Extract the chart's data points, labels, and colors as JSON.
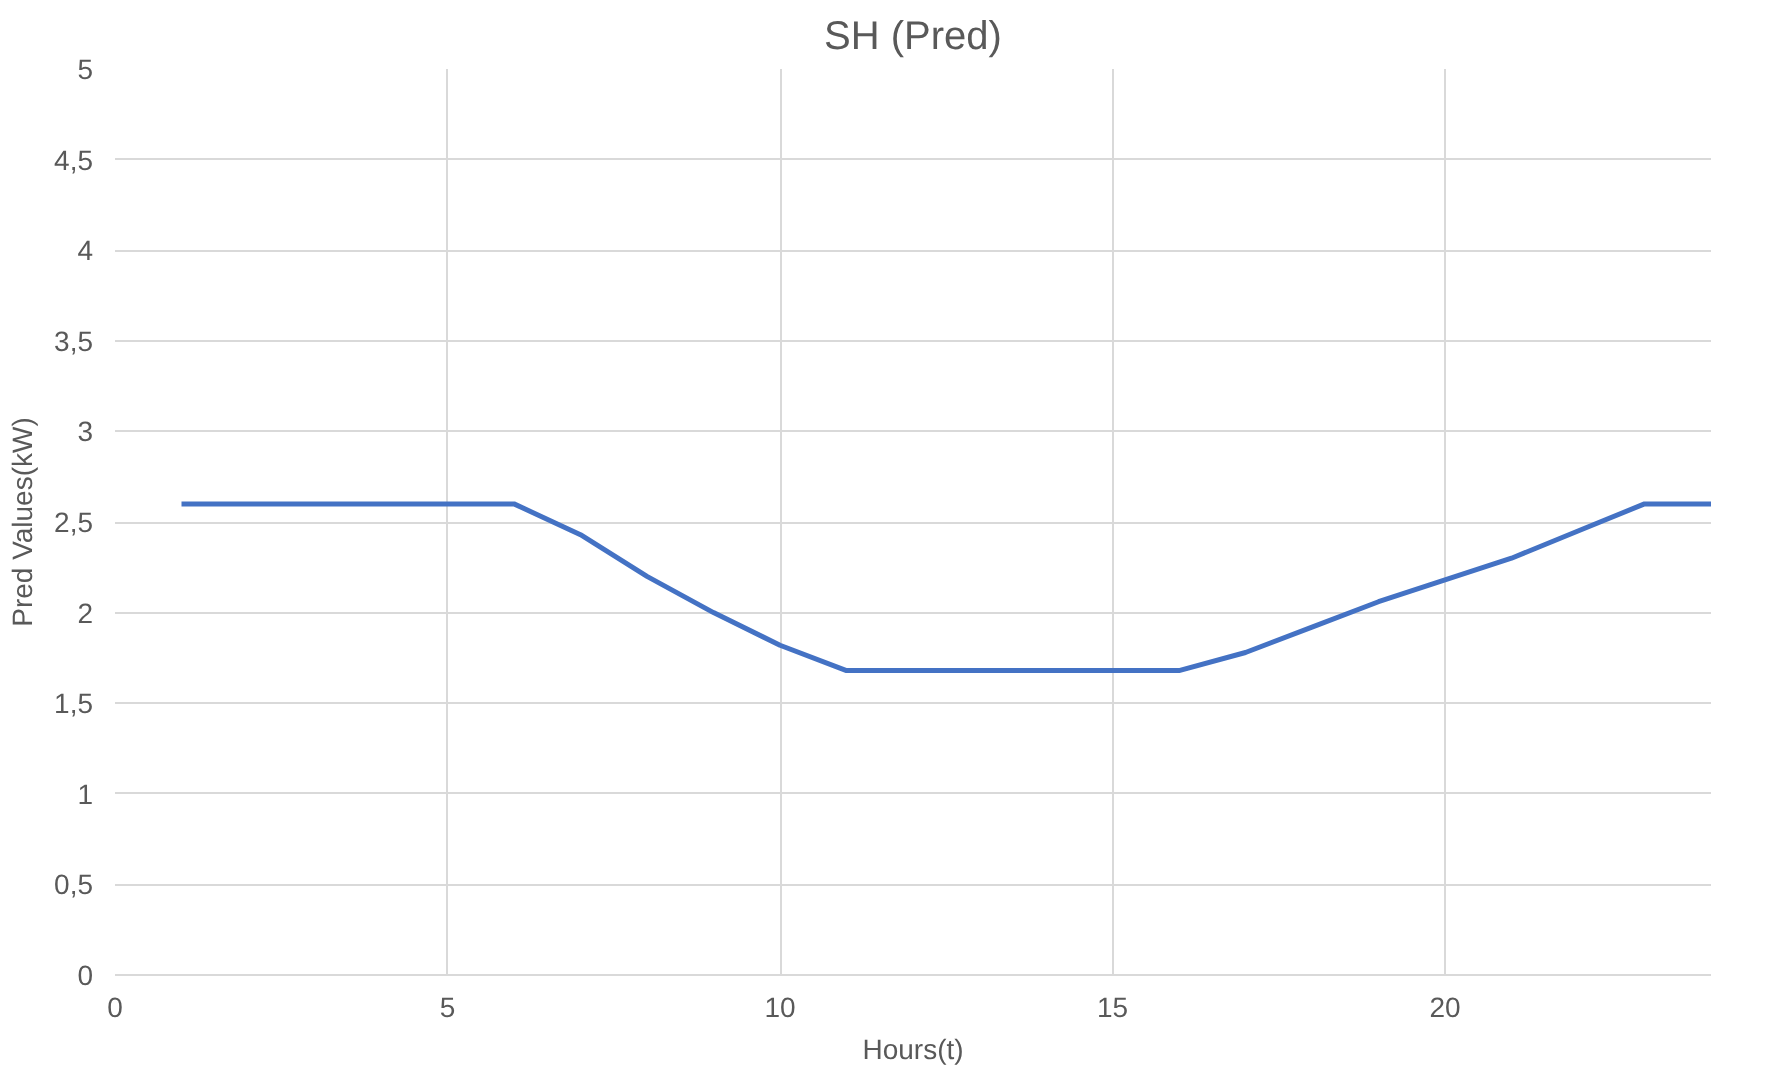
{
  "chart_data": {
    "type": "line",
    "title": "SH (Pred)",
    "xlabel": "Hours(t)",
    "ylabel": "Pred Values(kW)",
    "x": [
      1,
      2,
      3,
      4,
      5,
      6,
      7,
      8,
      9,
      10,
      11,
      12,
      13,
      14,
      15,
      16,
      17,
      18,
      19,
      20,
      21,
      22,
      23,
      24
    ],
    "series": [
      {
        "color": "#4472c4",
        "values": [
          2.6,
          2.6,
          2.6,
          2.6,
          2.6,
          2.6,
          2.43,
          2.2,
          2.0,
          1.82,
          1.68,
          1.68,
          1.68,
          1.68,
          1.68,
          1.68,
          1.78,
          1.92,
          2.06,
          2.18,
          2.3,
          2.45,
          2.6,
          2.6
        ]
      }
    ],
    "xlim": [
      0,
      24
    ],
    "xticks": [
      0,
      5,
      10,
      15,
      20
    ],
    "ylim": [
      0,
      5
    ],
    "yticks": [
      0,
      {
        "value": 0.5,
        "label": "0,5"
      },
      1,
      {
        "value": 1.5,
        "label": "1,5"
      },
      2,
      {
        "value": 2.5,
        "label": "2,5"
      },
      3,
      {
        "value": 3.5,
        "label": "3,5"
      },
      4,
      {
        "value": 4.5,
        "label": "4,5"
      },
      5
    ],
    "grid": true,
    "marker": "none",
    "line_style": "solid"
  }
}
